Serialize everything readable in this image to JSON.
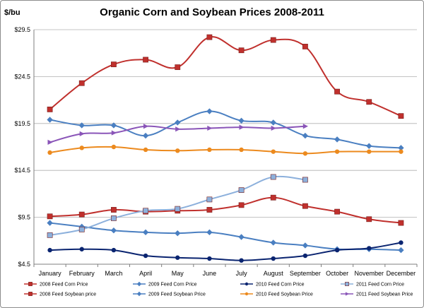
{
  "chart_data": {
    "type": "line",
    "title": "Organic Corn and Soybean Prices 2008-2011",
    "ylabel": "$/bu",
    "xlabel": "",
    "ylim": [
      4.5,
      29.5
    ],
    "yticks": [
      "$4.5",
      "$9.5",
      "$14.5",
      "$19.5",
      "$24.5",
      "$29.5"
    ],
    "ytick_values": [
      4.5,
      9.5,
      14.5,
      19.5,
      24.5,
      29.5
    ],
    "categories": [
      "January",
      "February",
      "March",
      "April",
      "May",
      "June",
      "July",
      "August",
      "September",
      "October",
      "November",
      "December"
    ],
    "grid": "horizontal",
    "legend_position": "bottom",
    "series": [
      {
        "name": "2008 Feed Corn Price",
        "color": "#c0302d",
        "marker": "square",
        "values": [
          9.6,
          9.8,
          10.3,
          10.1,
          10.2,
          10.3,
          10.8,
          11.6,
          10.7,
          10.1,
          9.3,
          8.9
        ]
      },
      {
        "name": "2009 Feed Corn Price",
        "color": "#4a7fc1",
        "marker": "diamond",
        "values": [
          8.9,
          8.5,
          8.1,
          7.9,
          7.8,
          7.9,
          7.4,
          6.8,
          6.5,
          6.1,
          6.1,
          6.0
        ]
      },
      {
        "name": "2010 Feed Corn Price",
        "color": "#0a2470",
        "marker": "circle",
        "values": [
          6.0,
          6.1,
          6.0,
          5.4,
          5.2,
          5.1,
          4.9,
          5.1,
          5.4,
          6.0,
          6.2,
          6.8
        ]
      },
      {
        "name": "2011 Feed Corn Price",
        "color": "#8cb0dc",
        "marker": "square",
        "values": [
          7.6,
          8.2,
          9.4,
          10.2,
          10.4,
          11.4,
          12.4,
          13.8,
          13.5,
          null,
          null,
          null
        ]
      },
      {
        "name": "2008 Feed Soybean price",
        "color": "#c0302d",
        "marker": "square",
        "values": [
          21.0,
          23.8,
          25.8,
          26.3,
          25.5,
          28.7,
          27.3,
          28.4,
          27.7,
          22.9,
          21.8,
          20.3
        ]
      },
      {
        "name": "2009 Feed Soybean Price",
        "color": "#4a7fc1",
        "marker": "diamond",
        "values": [
          19.9,
          19.3,
          19.3,
          18.2,
          19.6,
          20.8,
          19.8,
          19.6,
          18.2,
          17.8,
          17.1,
          16.9
        ]
      },
      {
        "name": "2010 Feed Soybean Price",
        "color": "#ec8a1e",
        "marker": "circle",
        "values": [
          16.4,
          16.9,
          17.0,
          16.7,
          16.6,
          16.7,
          16.7,
          16.5,
          16.3,
          16.5,
          16.5,
          16.5
        ]
      },
      {
        "name": "2011 Feed Soybean Price",
        "color": "#8a55b8",
        "marker": "triangle",
        "values": [
          17.5,
          18.4,
          18.5,
          19.2,
          18.9,
          19.0,
          19.1,
          19.0,
          19.2,
          null,
          null,
          null
        ]
      }
    ]
  }
}
